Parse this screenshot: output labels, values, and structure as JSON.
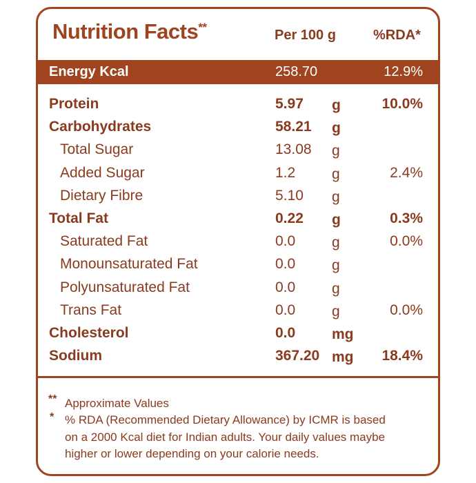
{
  "header": {
    "title": "Nutrition Facts",
    "title_mark": "**",
    "per_label": "Per 100 g",
    "rda_label": "%RDA*"
  },
  "energy": {
    "name": "Energy Kcal",
    "value": "258.70",
    "rda": "12.9%"
  },
  "rows": [
    {
      "name": "Protein",
      "value": "5.97",
      "unit": "g",
      "rda": "10.0%",
      "bold": true
    },
    {
      "name": "Carbohydrates",
      "value": "58.21",
      "unit": "g",
      "rda": "",
      "bold": true
    },
    {
      "name": "Total Sugar",
      "value": "13.08",
      "unit": "g",
      "rda": "",
      "bold": false
    },
    {
      "name": "Added Sugar",
      "value": "1.2",
      "unit": "g",
      "rda": "2.4%",
      "bold": false
    },
    {
      "name": "Dietary Fibre",
      "value": "5.10",
      "unit": "g",
      "rda": "",
      "bold": false
    },
    {
      "name": "Total Fat",
      "value": "0.22",
      "unit": "g",
      "rda": "0.3%",
      "bold": true
    },
    {
      "name": "Saturated Fat",
      "value": "0.0",
      "unit": "g",
      "rda": "0.0%",
      "bold": false
    },
    {
      "name": "Monounsaturated Fat",
      "value": "0.0",
      "unit": "g",
      "rda": "",
      "bold": false
    },
    {
      "name": "Polyunsaturated Fat",
      "value": "0.0",
      "unit": "g",
      "rda": "",
      "bold": false
    },
    {
      "name": "Trans Fat",
      "value": "0.0",
      "unit": "g",
      "rda": "0.0%",
      "bold": false
    },
    {
      "name": "Cholesterol",
      "value": "0.0",
      "unit": "mg",
      "rda": "",
      "bold": true
    },
    {
      "name": "Sodium",
      "value": "367.20",
      "unit": "mg",
      "rda": "18.4%",
      "bold": true
    }
  ],
  "footnotes": {
    "mark1": "**",
    "note1": "Approximate Values",
    "mark2": "*",
    "note2_line1": "% RDA (Recommended Dietary Allowance) by ICMR is based",
    "note2_line2": "on a 2000 Kcal diet for Indian adults. Your daily values maybe",
    "note2_line3": "higher or lower depending on your calorie needs."
  },
  "colors": {
    "accent": "#a0441f",
    "text": "#8a3a1e"
  }
}
